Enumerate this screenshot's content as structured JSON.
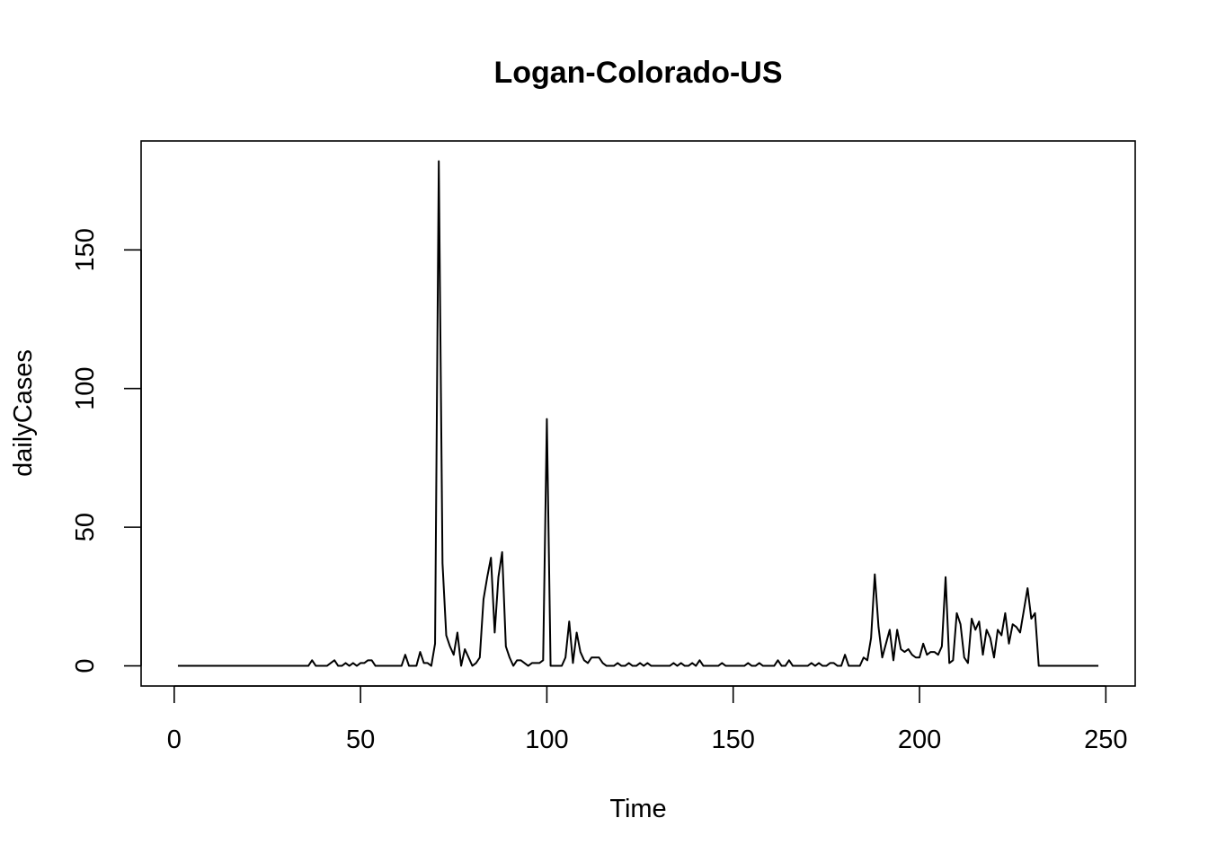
{
  "chart_data": {
    "type": "line",
    "title": "Logan-Colorado-US",
    "xlabel": "Time",
    "ylabel": "dailyCases",
    "xlim": [
      1,
      248
    ],
    "ylim": [
      0,
      182
    ],
    "x_ticks": [
      "0",
      "50",
      "100",
      "150",
      "200",
      "250"
    ],
    "y_ticks": [
      "0",
      "50",
      "100",
      "150"
    ],
    "grid": false,
    "line_color": "#000000",
    "series": [
      {
        "x": [
          1,
          2,
          3,
          4,
          5,
          6,
          7,
          8,
          9,
          10,
          11,
          12,
          13,
          14,
          15,
          16,
          17,
          18,
          19,
          20,
          21,
          22,
          23,
          24,
          25,
          26,
          27,
          28,
          29,
          30,
          31,
          32,
          33,
          34,
          35,
          36,
          37,
          38,
          39,
          40,
          41,
          42,
          43,
          44,
          45,
          46,
          47,
          48,
          49,
          50,
          51,
          52,
          53,
          54,
          55,
          56,
          57,
          58,
          59,
          60,
          61,
          62,
          63,
          64,
          65,
          66,
          67,
          68,
          69,
          70,
          71,
          72,
          73,
          74,
          75,
          76,
          77,
          78,
          79,
          80,
          81,
          82,
          83,
          84,
          85,
          86,
          87,
          88,
          89,
          90,
          91,
          92,
          93,
          94,
          95,
          96,
          97,
          98,
          99,
          100,
          101,
          102,
          103,
          104,
          105,
          106,
          107,
          108,
          109,
          110,
          111,
          112,
          113,
          114,
          115,
          116,
          117,
          118,
          119,
          120,
          121,
          122,
          123,
          124,
          125,
          126,
          127,
          128,
          129,
          130,
          131,
          132,
          133,
          134,
          135,
          136,
          137,
          138,
          139,
          140,
          141,
          142,
          143,
          144,
          145,
          146,
          147,
          148,
          149,
          150,
          151,
          152,
          153,
          154,
          155,
          156,
          157,
          158,
          159,
          160,
          161,
          162,
          163,
          164,
          165,
          166,
          167,
          168,
          169,
          170,
          171,
          172,
          173,
          174,
          175,
          176,
          177,
          178,
          179,
          180,
          181,
          182,
          183,
          184,
          185,
          186,
          187,
          188,
          189,
          190,
          191,
          192,
          193,
          194,
          195,
          196,
          197,
          198,
          199,
          200,
          201,
          202,
          203,
          204,
          205,
          206,
          207,
          208,
          209,
          210,
          211,
          212,
          213,
          214,
          215,
          216,
          217,
          218,
          219,
          220,
          221,
          222,
          223,
          224,
          225,
          226,
          227,
          228,
          229,
          230,
          231,
          232,
          233,
          234,
          235,
          236,
          237,
          238,
          239,
          240,
          241,
          242,
          243,
          244,
          245,
          246,
          247,
          248
        ],
        "y": [
          0,
          0,
          0,
          0,
          0,
          0,
          0,
          0,
          0,
          0,
          0,
          0,
          0,
          0,
          0,
          0,
          0,
          0,
          0,
          0,
          0,
          0,
          0,
          0,
          0,
          0,
          0,
          0,
          0,
          0,
          0,
          0,
          0,
          0,
          0,
          0,
          2,
          0,
          0,
          0,
          0,
          1,
          2,
          0,
          0,
          1,
          0,
          1,
          0,
          1,
          1,
          2,
          2,
          0,
          0,
          0,
          0,
          0,
          0,
          0,
          0,
          4,
          0,
          0,
          0,
          5,
          1,
          1,
          0,
          8,
          182,
          37,
          11,
          7,
          4,
          12,
          0,
          6,
          3,
          0,
          1,
          3,
          24,
          32,
          39,
          12,
          32,
          41,
          7,
          3,
          0,
          2,
          2,
          1,
          0,
          1,
          1,
          1,
          2,
          89,
          0,
          0,
          0,
          0,
          3,
          16,
          1,
          12,
          5,
          2,
          1,
          3,
          3,
          3,
          1,
          0,
          0,
          0,
          1,
          0,
          0,
          1,
          0,
          0,
          1,
          0,
          1,
          0,
          0,
          0,
          0,
          0,
          0,
          1,
          0,
          1,
          0,
          0,
          1,
          0,
          2,
          0,
          0,
          0,
          0,
          0,
          1,
          0,
          0,
          0,
          0,
          0,
          0,
          1,
          0,
          0,
          1,
          0,
          0,
          0,
          0,
          2,
          0,
          0,
          2,
          0,
          0,
          0,
          0,
          0,
          1,
          0,
          1,
          0,
          0,
          1,
          1,
          0,
          0,
          4,
          0,
          0,
          0,
          0,
          3,
          2,
          10,
          33,
          14,
          3,
          8,
          13,
          2,
          13,
          6,
          5,
          6,
          4,
          3,
          3,
          8,
          4,
          5,
          5,
          4,
          7,
          32,
          1,
          2,
          19,
          15,
          3,
          1,
          17,
          13,
          16,
          4,
          13,
          10,
          3,
          13,
          11,
          19,
          8,
          15,
          14,
          12,
          20,
          28,
          17,
          19,
          0,
          0,
          0,
          0,
          0,
          0,
          0,
          0,
          0,
          0,
          0,
          0,
          0,
          0,
          0,
          0,
          0
        ]
      }
    ]
  }
}
